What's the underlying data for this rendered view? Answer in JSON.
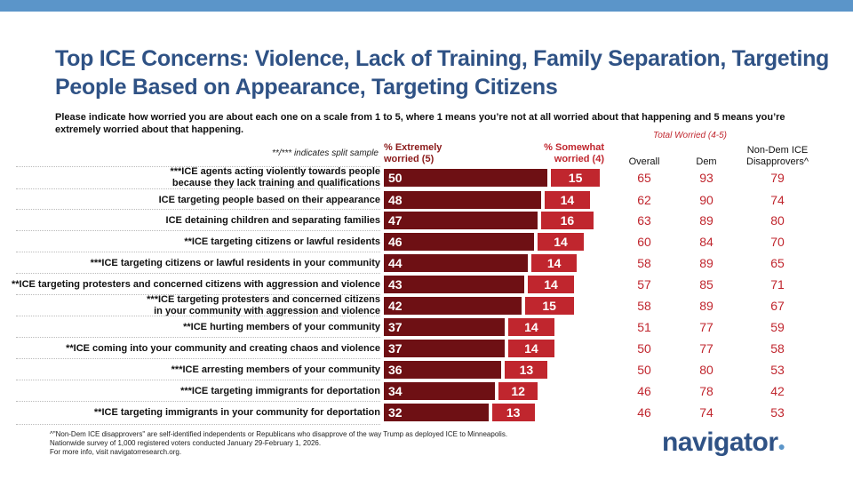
{
  "header": {
    "title": "Top ICE Concerns: Violence, Lack of Training, Family Separation, Targeting People Based on Appearance, Targeting Citizens",
    "subtitle": "Please indicate how worried you are about each one on a scale from 1 to 5, where 1 means you’re not at all worried about that happening and 5 means you’re extremely worried about that happening.",
    "note": "**/*** indicates split sample"
  },
  "colors": {
    "extremely": "#6e1014",
    "somewhat": "#c0262e",
    "title": "#2f5285",
    "topbar": "#5b95c9"
  },
  "chart_data": {
    "type": "bar",
    "orientation": "horizontal",
    "stacked": true,
    "series": [
      {
        "name": "% Extremely worried (5)",
        "values": [
          50,
          48,
          47,
          46,
          44,
          43,
          42,
          37,
          37,
          36,
          34,
          32
        ]
      },
      {
        "name": "% Somewhat worried (4)",
        "values": [
          15,
          14,
          16,
          14,
          14,
          14,
          15,
          14,
          14,
          13,
          12,
          13
        ]
      }
    ],
    "categories": [
      [
        "***ICE agents acting violently towards people",
        "because they lack training and qualifications"
      ],
      [
        "ICE targeting people based on their appearance"
      ],
      [
        "ICE detaining children and separating families"
      ],
      [
        "**ICE targeting citizens or lawful residents"
      ],
      [
        "***ICE targeting citizens or lawful residents in your community"
      ],
      [
        "**ICE targeting protesters and concerned citizens with aggression and violence"
      ],
      [
        "***ICE targeting protesters and concerned citizens",
        "in your community with aggression and violence"
      ],
      [
        "**ICE hurting members of your community"
      ],
      [
        "**ICE coming into your community and creating chaos and violence"
      ],
      [
        "***ICE arresting members of your community"
      ],
      [
        "***ICE targeting immigrants for deportation"
      ],
      [
        "**ICE targeting immigrants in your community for deportation"
      ]
    ],
    "table": {
      "group_label": "Total Worried (4-5)",
      "columns": [
        "Overall",
        "Dem",
        "Non-Dem ICE Disapprovers^"
      ],
      "values": [
        [
          65,
          93,
          79
        ],
        [
          62,
          90,
          74
        ],
        [
          63,
          89,
          80
        ],
        [
          60,
          84,
          70
        ],
        [
          58,
          89,
          65
        ],
        [
          57,
          85,
          71
        ],
        [
          58,
          89,
          67
        ],
        [
          51,
          77,
          59
        ],
        [
          50,
          77,
          58
        ],
        [
          50,
          80,
          53
        ],
        [
          46,
          78,
          42
        ],
        [
          46,
          74,
          53
        ]
      ]
    }
  },
  "footer": [
    "^\"Non-Dem ICE disapprovers\" are self-identified independents or Republicans who disapprove of the way Trump as deployed ICE to Minneapolis.",
    "Nationwide survey of 1,000 registered voters conducted January 29-February 1, 2026.",
    "For more info, visit navigatorresearch.org."
  ],
  "logo": "navigator"
}
